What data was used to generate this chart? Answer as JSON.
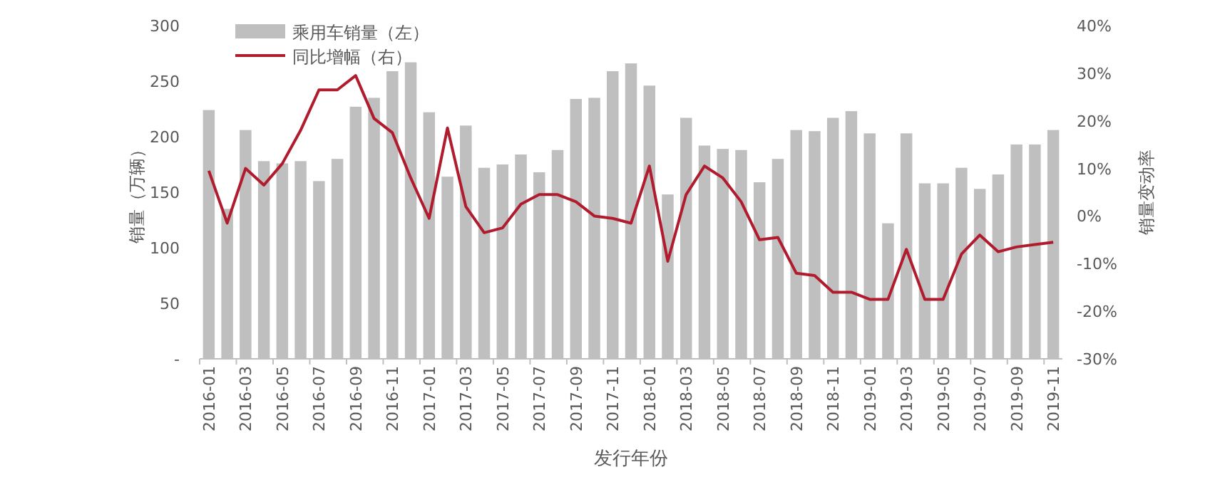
{
  "chart_data": {
    "type": "bar",
    "xlabel": "发行年份",
    "ylabel": "销量（万辆）",
    "y2label": "销量变动率",
    "legend": "top left",
    "categories": [
      "2016-01",
      null,
      "2016-03",
      null,
      "2016-05",
      null,
      "2016-07",
      null,
      "2016-09",
      null,
      "2016-11",
      null,
      "2017-01",
      null,
      "2017-03",
      null,
      "2017-05",
      null,
      "2017-07",
      null,
      "2017-09",
      null,
      "2017-11",
      null,
      "2018-01",
      null,
      "2018-03",
      null,
      "2018-05",
      null,
      "2018-07",
      null,
      "2018-09",
      null,
      "2018-11",
      null,
      "2019-01",
      null,
      "2019-03",
      null,
      "2019-05",
      null,
      "2019-07",
      null,
      "2019-09",
      null,
      "2019-11"
    ],
    "series": [
      {
        "name": "乘用车销量（左）",
        "color": "#bfbfbf",
        "values": [
          224,
          135,
          206,
          178,
          176,
          178,
          160,
          180,
          227,
          235,
          259,
          267,
          222,
          164,
          210,
          172,
          175,
          184,
          168,
          188,
          234,
          235,
          259,
          266,
          246,
          148,
          217,
          192,
          189,
          188,
          159,
          180,
          206,
          205,
          217,
          223,
          203,
          122,
          203,
          158,
          158,
          172,
          153,
          166,
          193,
          193,
          206
        ]
      },
      {
        "name": "同比增幅（右）",
        "type": "line",
        "axis": "y2",
        "color": "#b01c2e",
        "values": [
          9.5,
          -1.5,
          10,
          6.5,
          11,
          18,
          26.5,
          26.5,
          29.5,
          20.5,
          17.5,
          8,
          -0.5,
          18.5,
          2,
          -3.5,
          -2.5,
          2.5,
          4.5,
          4.5,
          3,
          0,
          -0.5,
          -1.5,
          10.5,
          -9.5,
          4.5,
          10.5,
          8,
          3,
          -5,
          -4.5,
          -12,
          -12.5,
          -16,
          -16,
          -17.5,
          -17.5,
          -7,
          -17.5,
          -17.5,
          -8,
          -4,
          -7.5,
          -6.5,
          -6,
          -5.5
        ]
      }
    ],
    "ylim": [
      0,
      300
    ],
    "yticks": [
      {
        "value": 0,
        "label": "-"
      },
      50,
      100,
      150,
      200,
      250,
      300
    ],
    "y2lim": [
      -30,
      40
    ],
    "y2ticks": [
      {
        "value": -30,
        "label": "-30%"
      },
      {
        "value": -20,
        "label": "-20%"
      },
      {
        "value": -10,
        "label": "-10%"
      },
      {
        "value": 0,
        "label": "0%"
      },
      {
        "value": 10,
        "label": "10%"
      },
      {
        "value": 20,
        "label": "20%"
      },
      {
        "value": 30,
        "label": "30%"
      },
      {
        "value": 40,
        "label": "40%"
      }
    ]
  }
}
